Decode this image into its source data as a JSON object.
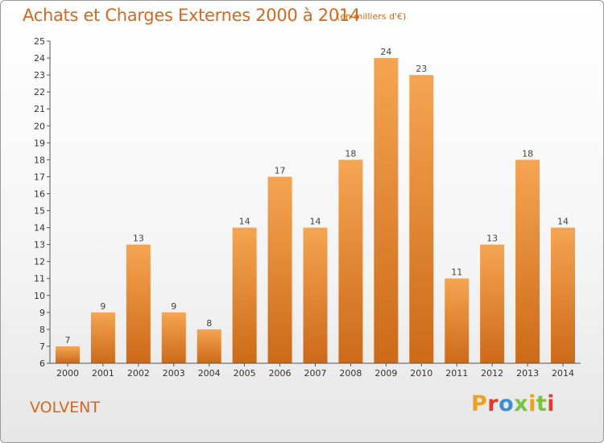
{
  "header": {
    "title": "Achats et Charges Externes 2000 à 2014",
    "subtitle": "(en milliers d'€)"
  },
  "footer": {
    "commune": "VOLVENT",
    "logo_text": "Proxiti",
    "logo_colors": [
      "#f0a020",
      "#e23b2e",
      "#3a8fd8",
      "#7cc242",
      "#f0a020",
      "#7cc242",
      "#e23b2e"
    ]
  },
  "chart_data": {
    "type": "bar",
    "title": "Achats et Charges Externes 2000 à 2014",
    "subtitle": "(en milliers d'€)",
    "xlabel": "",
    "ylabel": "",
    "categories": [
      "2000",
      "2001",
      "2002",
      "2003",
      "2004",
      "2005",
      "2006",
      "2007",
      "2008",
      "2009",
      "2010",
      "2011",
      "2012",
      "2013",
      "2014"
    ],
    "values": [
      7,
      9,
      13,
      9,
      8,
      14,
      17,
      14,
      18,
      24,
      23,
      11,
      13,
      18,
      14
    ],
    "ylim": [
      6,
      25
    ],
    "yticks": [
      6,
      7,
      8,
      9,
      10,
      11,
      12,
      13,
      14,
      15,
      16,
      17,
      18,
      19,
      20,
      21,
      22,
      23,
      24,
      25
    ],
    "grid": false,
    "bar_color_top": "#f5a552",
    "bar_color_bottom": "#cc6a18",
    "data_labels": true
  }
}
